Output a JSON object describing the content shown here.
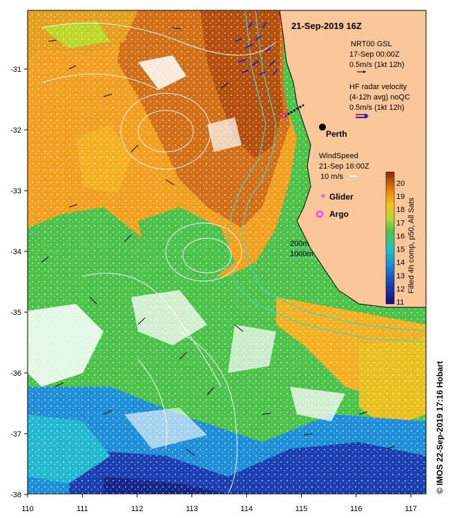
{
  "title": "21-Sep-2019 16Z",
  "legend": {
    "gsl_line1": "NRT00 GSL",
    "gsl_line2": "17-Sep 00:00Z",
    "gsl_line3": "0.5m/s (1kt 12h)",
    "hf_line1": "HF radar velocity",
    "hf_line2": "(4-12h avg) noQC",
    "hf_line3": "0.5m/s (1kt 12h)",
    "wind_line1": "WindSpeed",
    "wind_line2": "21-Sep 16:00Z",
    "wind_line3": "10 m/s",
    "glider": "Glider",
    "argo": "Argo",
    "iso200": "200m",
    "iso1000": "1000m"
  },
  "city": "Perth",
  "colorbar": {
    "title": "Filled 4h comp, p50, All Sats",
    "ticks": [
      "20",
      "19",
      "18",
      "17",
      "16",
      "15",
      "14",
      "13",
      "12",
      "11"
    ]
  },
  "x_ticks": [
    "110",
    "111",
    "112",
    "113",
    "114",
    "115",
    "116",
    "117"
  ],
  "y_ticks": [
    "-31",
    "-32",
    "-33",
    "-34",
    "-35",
    "-36",
    "-37",
    "-38"
  ],
  "credit": "© IMOS 22-Sep-2019 17:16 Hobart",
  "colors": {
    "land": "#f9c79a",
    "sst_warm": "#c65a10",
    "sst_mid": "#f3a020",
    "sst_green": "#4cc24a",
    "sst_cool": "#1e8fd8",
    "sst_cold": "#1a3fb0",
    "isobath": "#3fd6c8",
    "hf_arrow": "#2020d0",
    "glider": "#ff40ff"
  }
}
